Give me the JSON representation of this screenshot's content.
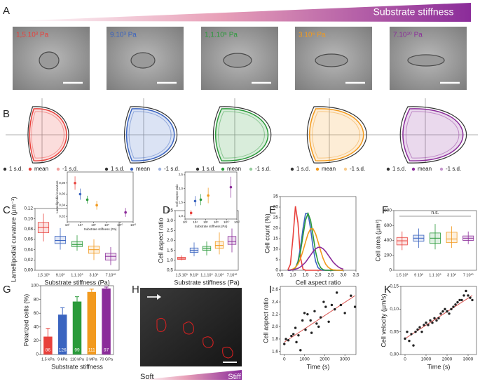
{
  "panel_labels": [
    "A",
    "B",
    "C",
    "D",
    "E",
    "F",
    "G",
    "H",
    "I",
    "K"
  ],
  "gradient_label": "Substrate stiffness",
  "micrographs": [
    {
      "label": "1,5.10³ Pa",
      "color": "#e8413c"
    },
    {
      "label": "9.10³ Pa",
      "color": "#3a64c0"
    },
    {
      "label": "1,1.10⁵ Pa",
      "color": "#2a9a3a"
    },
    {
      "label": "3.10⁶ Pa",
      "color": "#f29a1e"
    },
    {
      "label": "7.10¹⁰ Pa",
      "color": "#8b2c9a"
    }
  ],
  "shape_legend": [
    "1 s.d.",
    "mean",
    "-1 s.d."
  ],
  "h_labels": [
    "Soft",
    "Stiff"
  ],
  "chart_data": [
    {
      "type": "box",
      "ylabel": "Lamellipodial curvature (µm⁻¹)",
      "xlabel": "Substrate stiffness (Pa)",
      "categories": [
        "1,5.10³",
        "9.10³",
        "1,1.10⁵",
        "3.10⁶",
        "7.10¹⁰"
      ],
      "colors": [
        "#e8413c",
        "#3a64c0",
        "#2a9a3a",
        "#f29a1e",
        "#8b2c9a"
      ],
      "boxes": [
        [
          0.056,
          0.073,
          0.083,
          0.093,
          0.11
        ],
        [
          0.04,
          0.052,
          0.058,
          0.066,
          0.082
        ],
        [
          0.038,
          0.046,
          0.05,
          0.056,
          0.068
        ],
        [
          0.02,
          0.033,
          0.04,
          0.047,
          0.06
        ],
        [
          0.01,
          0.02,
          0.027,
          0.033,
          0.045
        ]
      ],
      "ylim": [
        0,
        0.12
      ],
      "yticks": [
        {
          "value": 0,
          "label": "0,00"
        },
        {
          "value": 0.02,
          "label": "0,02"
        },
        {
          "value": 0.04,
          "label": "0,04"
        },
        {
          "value": 0.06,
          "label": "0,06"
        },
        {
          "value": 0.08,
          "label": "0,08"
        },
        {
          "value": 0.1,
          "label": "0,10"
        },
        {
          "value": 0.12,
          "label": "0,12"
        }
      ]
    },
    {
      "type": "errorbar",
      "ylabel": "Lamellipodial curvature",
      "xlabel": "Substrate stiffness (Pa)",
      "x": [
        1500,
        9000,
        110000,
        3000000,
        70000000000
      ],
      "values": [
        0.08,
        0.06,
        0.05,
        0.04,
        0.027
      ],
      "errors": [
        0.012,
        0.01,
        0.007,
        0.008,
        0.008
      ],
      "colors": [
        "#e8413c",
        "#3a64c0",
        "#2a9a3a",
        "#f29a1e",
        "#8b2c9a"
      ],
      "xscale": "log",
      "xlim": [
        100,
        1000000000000
      ],
      "xticks": [
        {
          "value": 100,
          "label": "10²"
        },
        {
          "value": 10000,
          "label": "10⁴"
        },
        {
          "value": 1000000,
          "label": "10⁶"
        },
        {
          "value": 100000000,
          "label": "10⁸"
        },
        {
          "value": 10000000000,
          "label": "10¹⁰"
        },
        {
          "value": 1000000000000,
          "label": "10¹²"
        }
      ],
      "ylim": [
        0.01,
        0.1
      ],
      "yticks": [
        {
          "value": 0.02,
          "label": "0,02"
        },
        {
          "value": 0.04,
          "label": "0,04"
        },
        {
          "value": 0.06,
          "label": "0,06"
        },
        {
          "value": 0.08,
          "label": "0,08"
        }
      ]
    },
    {
      "type": "box",
      "ylabel": "Cell aspect ratio",
      "xlabel": "Substrate stiffness (Pa)",
      "categories": [
        "1,5.10³",
        "9.10³",
        "1,1.10⁵",
        "3.10⁶",
        "7.10¹⁰"
      ],
      "colors": [
        "#e8413c",
        "#3a64c0",
        "#2a9a3a",
        "#f29a1e",
        "#8b2c9a"
      ],
      "boxes": [
        [
          1.0,
          1.05,
          1.1,
          1.15,
          1.25
        ],
        [
          1.2,
          1.4,
          1.5,
          1.62,
          1.9
        ],
        [
          1.25,
          1.5,
          1.6,
          1.7,
          1.95
        ],
        [
          1.3,
          1.6,
          1.75,
          1.95,
          2.4
        ],
        [
          1.4,
          1.8,
          1.95,
          2.2,
          2.6
        ]
      ],
      "ylim": [
        0.5,
        3.5
      ],
      "yticks": [
        {
          "value": 0.5,
          "label": "0,5"
        },
        {
          "value": 1,
          "label": "1,0"
        },
        {
          "value": 1.5,
          "label": "1,5"
        },
        {
          "value": 2,
          "label": "2,0"
        },
        {
          "value": 2.5,
          "label": "2,5"
        },
        {
          "value": 3,
          "label": "3,0"
        },
        {
          "value": 3.5,
          "label": "3,5"
        }
      ]
    },
    {
      "type": "errorbar",
      "ylabel": "Cell aspect ratio",
      "xlabel": "Substrate stiffness (Pa)",
      "x": [
        1500,
        9000,
        110000,
        3000000,
        70000000000
      ],
      "values": [
        1.12,
        1.55,
        1.6,
        1.75,
        2.05
      ],
      "errors": [
        0.1,
        0.18,
        0.2,
        0.28,
        0.38
      ],
      "colors": [
        "#e8413c",
        "#3a64c0",
        "#2a9a3a",
        "#f29a1e",
        "#8b2c9a"
      ],
      "xscale": "log",
      "xlim": [
        100,
        1000000000000
      ],
      "xticks": [
        {
          "value": 100,
          "label": "10²"
        },
        {
          "value": 10000,
          "label": "10⁴"
        },
        {
          "value": 1000000,
          "label": "10⁶"
        },
        {
          "value": 100000000,
          "label": "10⁸"
        },
        {
          "value": 10000000000,
          "label": "10¹⁰"
        },
        {
          "value": 1000000000000,
          "label": "10¹²"
        }
      ],
      "ylim": [
        0.9,
        2.6
      ],
      "yticks": [
        {
          "value": 1,
          "label": "1,0"
        },
        {
          "value": 1.5,
          "label": "1,5"
        },
        {
          "value": 2,
          "label": "2,0"
        },
        {
          "value": 2.5,
          "label": "2,5"
        }
      ]
    },
    {
      "type": "line",
      "ylabel": "Cell count (%)",
      "xlabel": "Cell aspect ratio",
      "x": [
        0.8,
        0.9,
        1.0,
        1.1,
        1.2,
        1.3,
        1.4,
        1.5,
        1.6,
        1.7,
        1.8,
        1.9,
        2.0,
        2.1,
        2.2,
        2.3,
        2.4,
        2.5,
        2.6,
        2.7,
        2.8,
        2.9,
        3.0
      ],
      "series": [
        {
          "color": "#e8413c",
          "values": [
            0.2,
            2.8,
            15.1,
            30.4,
            22.5,
            6.1,
            0.6,
            0,
            0,
            0,
            0,
            0,
            0,
            0,
            0,
            0,
            0,
            0,
            0,
            0,
            0,
            0,
            0
          ]
        },
        {
          "color": "#3a64c0",
          "values": [
            0,
            0,
            0.3,
            1.2,
            4.2,
            10.7,
            19.8,
            26.9,
            26.9,
            19.8,
            10.7,
            4.2,
            1.2,
            0.3,
            0,
            0,
            0,
            0,
            0,
            0,
            0,
            0,
            0
          ]
        },
        {
          "color": "#2a9a3a",
          "values": [
            0,
            0,
            0.3,
            1.2,
            3.7,
            8.8,
            16.4,
            23.8,
            27,
            23.8,
            16.4,
            8.8,
            3.7,
            1.2,
            0.3,
            0,
            0,
            0,
            0,
            0,
            0,
            0,
            0
          ]
        },
        {
          "color": "#f29a1e",
          "values": [
            0.1,
            0.2,
            0.6,
            1.4,
            2.9,
            5.5,
            9.2,
            13.4,
            17.3,
            19.7,
            19.7,
            17.3,
            13.4,
            9.2,
            5.5,
            2.9,
            1.4,
            0.6,
            0.2,
            0.1,
            0,
            0,
            0
          ]
        },
        {
          "color": "#8b2c9a",
          "values": [
            0,
            0.1,
            0.2,
            0.5,
            0.9,
            1.6,
            2.6,
            3.8,
            5.5,
            7.2,
            8.9,
            10.2,
            10.9,
            10.9,
            10.2,
            8.9,
            7.2,
            5.5,
            3.8,
            2.6,
            1.6,
            0.9,
            0.5
          ]
        }
      ],
      "xlim": [
        0.5,
        3.5
      ],
      "xticks": [
        {
          "value": 0.5,
          "label": "0,5"
        },
        {
          "value": 1,
          "label": "1,0"
        },
        {
          "value": 1.5,
          "label": "1,5"
        },
        {
          "value": 2,
          "label": "2,0"
        },
        {
          "value": 2.5,
          "label": "2,5"
        },
        {
          "value": 3,
          "label": "3,0"
        },
        {
          "value": 3.5,
          "label": "3,5"
        }
      ],
      "ylim": [
        0,
        35
      ],
      "yticks": [
        0,
        5,
        10,
        15,
        20,
        25,
        30,
        35
      ]
    },
    {
      "type": "box",
      "ylabel": "Cell area (µm²)",
      "annotation": "n.s.",
      "categories": [
        "1.5 10³",
        "9 10³",
        "1.1 10⁵",
        "3 10⁶",
        "7 10¹⁰"
      ],
      "colors": [
        "#e8413c",
        "#3a64c0",
        "#2a9a3a",
        "#f29a1e",
        "#8b2c9a"
      ],
      "boxes": [
        [
          270,
          340,
          395,
          440,
          520
        ],
        [
          300,
          390,
          430,
          470,
          560
        ],
        [
          280,
          360,
          430,
          500,
          620
        ],
        [
          300,
          370,
          420,
          510,
          590
        ],
        [
          350,
          400,
          430,
          460,
          520
        ]
      ],
      "ylim": [
        0,
        800
      ],
      "yticks": [
        0,
        200,
        400,
        600,
        800
      ]
    },
    {
      "type": "bar",
      "ylabel": "Polarized cells (%)",
      "xlabel": "Substrate stiffness",
      "categories": [
        "1.5 kPa",
        "9 kPa",
        "110 kPa",
        "3 MPa",
        "70 GPa"
      ],
      "values": [
        26,
        58,
        77,
        91,
        96
      ],
      "errors": [
        12,
        10,
        7,
        4,
        2
      ],
      "n_labels": [
        "86",
        "126",
        "99",
        "111",
        "97"
      ],
      "colors": [
        "#e8413c",
        "#3a64c0",
        "#2a9a3a",
        "#f29a1e",
        "#8b2c9a"
      ],
      "ylim": [
        0,
        100
      ],
      "yticks": [
        0,
        20,
        40,
        60,
        80,
        100
      ]
    },
    {
      "type": "scatter",
      "ylabel": "Cell aspect ratio",
      "xlabel": "Time (s)",
      "color": "#222",
      "fit_color": "#d9534f",
      "x": [
        0,
        80,
        200,
        350,
        450,
        550,
        600,
        700,
        800,
        900,
        1000,
        1050,
        1150,
        1300,
        1350,
        1500,
        1600,
        1700,
        1800,
        1950,
        2050,
        2200,
        2350,
        2500,
        2600,
        2800,
        3000,
        3300,
        3500
      ],
      "values": [
        1.72,
        1.8,
        1.78,
        1.85,
        1.88,
        1.98,
        1.75,
        1.86,
        1.62,
        2.1,
        2.22,
        1.95,
        2.2,
        2.1,
        1.9,
        2.25,
        2.05,
        2.0,
        2.15,
        2.4,
        2.32,
        2.08,
        2.35,
        2.28,
        2.55,
        2.35,
        2.22,
        2.5,
        2.32
      ],
      "fit_x": [
        0,
        3500
      ],
      "fit_values": [
        1.75,
        2.5
      ],
      "xlim": [
        -200,
        3550
      ],
      "xticks": [
        0,
        1000,
        2000,
        3000
      ],
      "ylim": [
        1.55,
        2.65
      ],
      "yticks": [
        {
          "value": 1.6,
          "label": "1,6"
        },
        {
          "value": 1.8,
          "label": "1,8"
        },
        {
          "value": 2,
          "label": "2,0"
        },
        {
          "value": 2.2,
          "label": "2,2"
        },
        {
          "value": 2.4,
          "label": "2,4"
        },
        {
          "value": 2.6,
          "label": "2,6"
        }
      ]
    },
    {
      "type": "scatter",
      "ylabel": "Cell velocity (µm/s)",
      "xlabel": "Time (s)",
      "color": "#222",
      "fit_color": "#d9534f",
      "x": [
        0,
        100,
        200,
        300,
        400,
        500,
        600,
        700,
        800,
        900,
        1000,
        1100,
        1200,
        1300,
        1400,
        1500,
        1600,
        1700,
        1800,
        1900,
        2000,
        2100,
        2200,
        2300,
        2400,
        2500,
        2600,
        2700,
        2800,
        2900,
        3000,
        3100,
        3200
      ],
      "values": [
        0.035,
        0.05,
        0.03,
        0.045,
        0.02,
        0.05,
        0.055,
        0.06,
        0.05,
        0.065,
        0.07,
        0.065,
        0.075,
        0.07,
        0.08,
        0.075,
        0.08,
        0.09,
        0.095,
        0.1,
        0.095,
        0.09,
        0.1,
        0.105,
        0.11,
        0.115,
        0.12,
        0.12,
        0.13,
        0.14,
        0.13,
        0.125,
        0.12
      ],
      "fit_x": [
        0,
        3200
      ],
      "fit_values": [
        0.035,
        0.13
      ],
      "xlim": [
        -200,
        3400
      ],
      "xticks": [
        0,
        1000,
        2000,
        3000
      ],
      "ylim": [
        0,
        0.15
      ],
      "yticks": [
        {
          "value": 0,
          "label": "0,00"
        },
        {
          "value": 0.05,
          "label": "0,05"
        },
        {
          "value": 0.1,
          "label": "0,10"
        },
        {
          "value": 0.15,
          "label": "0,15"
        }
      ]
    }
  ]
}
